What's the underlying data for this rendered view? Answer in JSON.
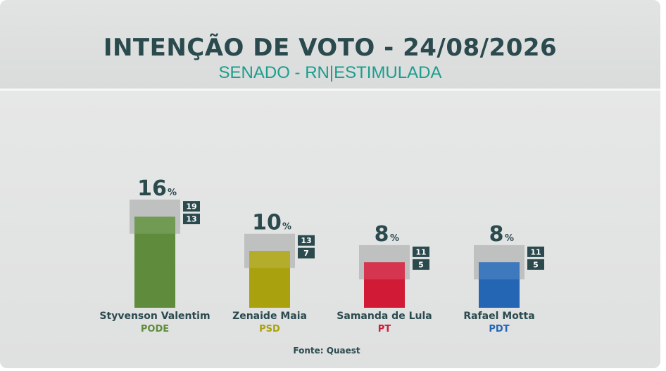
{
  "header": {
    "title": "INTENÇÃO DE VOTO - 24/08/2026",
    "subtitle": "SENADO - RN|ESTIMULADA"
  },
  "chart_data": {
    "type": "bar",
    "unit": "%",
    "categories": [
      "Styvenson Valentim",
      "Zenaide Maia",
      "Samanda de Lula",
      "Rafael Motta"
    ],
    "parties": [
      "PODE",
      "PSD",
      "PT",
      "PDT"
    ],
    "values": [
      16,
      10,
      8,
      8
    ],
    "ci_upper": [
      19,
      13,
      11,
      11
    ],
    "ci_lower": [
      13,
      7,
      5,
      5
    ],
    "colors": [
      "#5e8c3c",
      "#a9a20e",
      "#d01a36",
      "#2466b4"
    ],
    "ylim": [
      0,
      20
    ],
    "grid": false,
    "legend": "none"
  },
  "source": "Fonte: Quaest"
}
